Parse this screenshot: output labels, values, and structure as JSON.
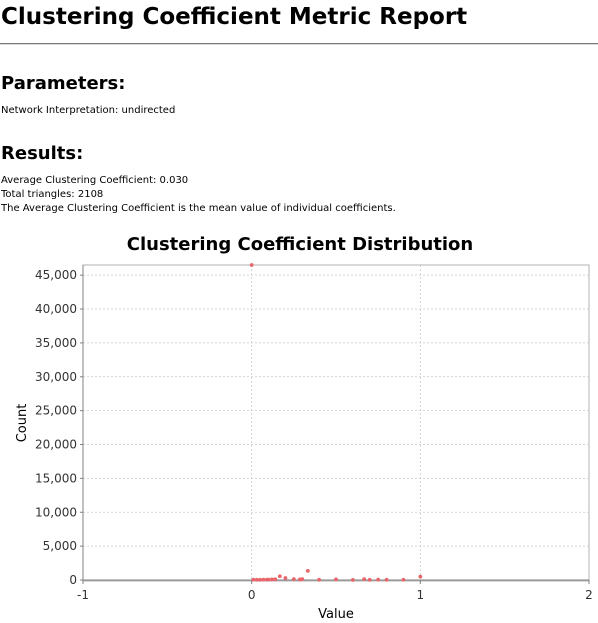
{
  "report": {
    "title": "Clustering Coefficient Metric Report",
    "parameters_heading": "Parameters:",
    "network_interpretation": "Network Interpretation: undirected",
    "results_heading": "Results:",
    "average_coefficient": "Average Clustering Coefficient: 0.030",
    "total_triangles": "Total triangles: 2108",
    "explanation": "The Average Clustering Coefficient is the mean value of individual coefficients."
  },
  "colors": {
    "points": "#e8656a",
    "grid": "#c8c8c8",
    "axis": "#808080"
  },
  "chart_data": {
    "type": "scatter",
    "title": "Clustering Coefficient Distribution",
    "xlabel": "Value",
    "ylabel": "Count",
    "xlim": [
      -1,
      2
    ],
    "ylim": [
      0,
      46500
    ],
    "xticks": [
      "-1",
      "0",
      "1",
      "2"
    ],
    "xtick_values": [
      -1,
      0,
      1,
      2
    ],
    "yticks": [
      "0",
      "5,000",
      "10,000",
      "15,000",
      "20,000",
      "25,000",
      "30,000",
      "35,000",
      "40,000",
      "45,000"
    ],
    "ytick_values": [
      0,
      5000,
      10000,
      15000,
      20000,
      25000,
      30000,
      35000,
      40000,
      45000
    ],
    "grid": true,
    "legend": "none",
    "series": [
      {
        "x": [
          0,
          0.01,
          0.03,
          0.05,
          0.07,
          0.09,
          0.1,
          0.12,
          0.14,
          0.167,
          0.2,
          0.25,
          0.286,
          0.3,
          0.333,
          0.4,
          0.5,
          0.6,
          0.667,
          0.7,
          0.75,
          0.8,
          0.9,
          1.0
        ],
        "y": [
          46500,
          50,
          40,
          40,
          50,
          60,
          60,
          80,
          100,
          550,
          300,
          120,
          80,
          120,
          1350,
          40,
          80,
          20,
          120,
          30,
          60,
          40,
          40,
          500
        ]
      }
    ]
  }
}
